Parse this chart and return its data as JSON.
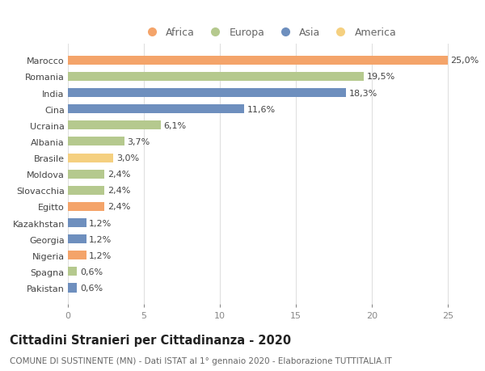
{
  "countries": [
    "Pakistan",
    "Spagna",
    "Nigeria",
    "Georgia",
    "Kazakhstan",
    "Egitto",
    "Slovacchia",
    "Moldova",
    "Brasile",
    "Albania",
    "Ucraina",
    "Cina",
    "India",
    "Romania",
    "Marocco"
  ],
  "values": [
    0.6,
    0.6,
    1.2,
    1.2,
    1.2,
    2.4,
    2.4,
    2.4,
    3.0,
    3.7,
    6.1,
    11.6,
    18.3,
    19.5,
    25.0
  ],
  "labels": [
    "0,6%",
    "0,6%",
    "1,2%",
    "1,2%",
    "1,2%",
    "2,4%",
    "2,4%",
    "2,4%",
    "3,0%",
    "3,7%",
    "6,1%",
    "11,6%",
    "18,3%",
    "19,5%",
    "25,0%"
  ],
  "continents": [
    "Asia",
    "Europa",
    "Africa",
    "Asia",
    "Asia",
    "Africa",
    "Europa",
    "Europa",
    "America",
    "Europa",
    "Europa",
    "Asia",
    "Asia",
    "Europa",
    "Africa"
  ],
  "colors": {
    "Africa": "#F4A46A",
    "Europa": "#B5C98E",
    "Asia": "#6E8FBE",
    "America": "#F5D080"
  },
  "legend_order": [
    "Africa",
    "Europa",
    "Asia",
    "America"
  ],
  "title": "Cittadini Stranieri per Cittadinanza - 2020",
  "subtitle": "COMUNE DI SUSTINENTE (MN) - Dati ISTAT al 1° gennaio 2020 - Elaborazione TUTTITALIA.IT",
  "xlim": [
    0,
    26.5
  ],
  "xticks": [
    0,
    5,
    10,
    15,
    20,
    25
  ],
  "background_color": "#FFFFFF",
  "grid_color": "#E0E0E0",
  "bar_height": 0.55,
  "label_fontsize": 8,
  "tick_fontsize": 8,
  "ytick_fontsize": 8,
  "title_fontsize": 10.5,
  "subtitle_fontsize": 7.5
}
